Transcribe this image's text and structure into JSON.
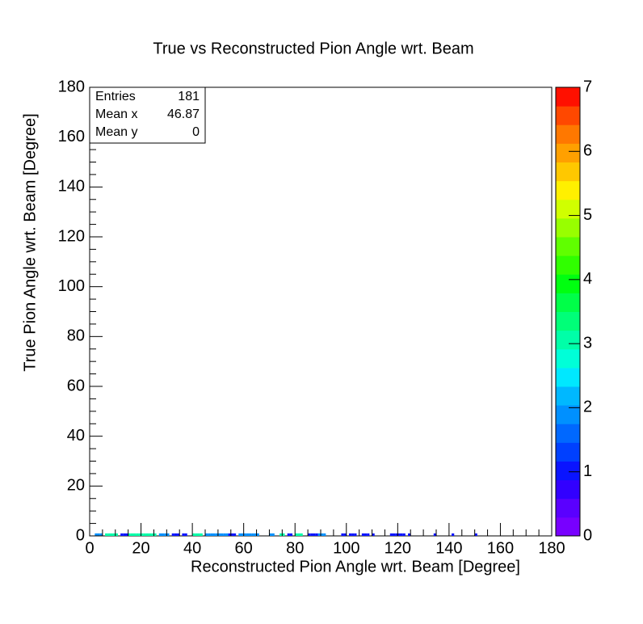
{
  "chart_data": {
    "type": "heatmap2d",
    "title": "True vs Reconstructed Pion Angle wrt. Beam",
    "x_label": "Reconstructed Pion Angle wrt. Beam [Degree]",
    "y_label": "True Pion Angle wrt. Beam [Degree]",
    "xlim": [
      0,
      180
    ],
    "ylim": [
      0,
      180
    ],
    "zlim": [
      0,
      7
    ],
    "xticks": [
      0,
      20,
      40,
      60,
      80,
      100,
      120,
      140,
      160,
      180
    ],
    "yticks": [
      0,
      20,
      40,
      60,
      80,
      100,
      120,
      140,
      160,
      180
    ],
    "zticks": [
      0,
      1,
      2,
      3,
      4,
      5,
      6,
      7
    ],
    "minor_divisions": 4,
    "xbin": 1,
    "ybin": 1,
    "x": [
      2,
      3,
      4,
      6,
      7,
      8,
      9,
      10,
      12,
      13,
      14,
      15,
      16,
      17,
      18,
      19,
      20,
      21,
      22,
      23,
      24,
      25,
      27,
      28,
      29,
      30,
      32,
      33,
      34,
      36,
      37,
      40,
      41,
      42,
      43,
      45,
      46,
      47,
      48,
      49,
      50,
      51,
      52,
      53,
      54,
      55,
      56,
      58,
      59,
      60,
      61,
      62,
      63,
      64,
      65,
      70,
      71,
      74,
      75,
      77,
      78,
      80,
      81,
      82,
      85,
      86,
      87,
      88,
      89,
      90,
      91,
      98,
      99,
      101,
      102,
      103,
      106,
      107,
      108,
      110,
      117,
      118,
      119,
      120,
      121,
      122,
      124,
      134,
      141,
      150
    ],
    "y": [
      0,
      0,
      0,
      0,
      0,
      0,
      0,
      0,
      0,
      0,
      0,
      0,
      0,
      0,
      0,
      0,
      0,
      0,
      0,
      0,
      0,
      0,
      0,
      0,
      0,
      0,
      0,
      0,
      0,
      0,
      0,
      0,
      0,
      0,
      0,
      0,
      0,
      0,
      0,
      0,
      0,
      0,
      0,
      0,
      0,
      0,
      0,
      0,
      0,
      0,
      0,
      0,
      0,
      0,
      0,
      0,
      0,
      0,
      0,
      0,
      0,
      0,
      0,
      0,
      0,
      0,
      0,
      0,
      0,
      0,
      0,
      0,
      0,
      0,
      0,
      0,
      0,
      0,
      0,
      0,
      0,
      0,
      0,
      0,
      0,
      0,
      0,
      0,
      0,
      0
    ],
    "values": [
      2,
      2,
      2,
      3,
      3,
      3,
      3,
      3,
      1,
      1,
      1,
      3,
      3,
      3,
      3,
      3,
      3,
      3,
      3,
      3,
      3,
      3,
      2,
      2,
      2,
      2,
      1,
      1,
      1,
      1,
      1,
      3,
      3,
      3,
      3,
      2,
      2,
      2,
      2,
      2,
      2,
      2,
      2,
      2,
      1,
      1,
      1,
      2,
      2,
      2,
      2,
      2,
      2,
      2,
      2,
      2,
      2,
      3,
      3,
      1,
      1,
      3,
      3,
      3,
      1,
      1,
      1,
      1,
      2,
      2,
      2,
      1,
      1,
      1,
      1,
      1,
      1,
      1,
      1,
      1,
      1,
      1,
      1,
      1,
      1,
      1,
      1,
      1,
      1,
      1
    ],
    "palette": [
      "#7800ff",
      "#5a00ff",
      "#3200ff",
      "#0a14ff",
      "#0040ff",
      "#0068ff",
      "#0090ff",
      "#00b8ff",
      "#00e8ff",
      "#00ffd8",
      "#00ffa8",
      "#00ff78",
      "#00ff48",
      "#00ff10",
      "#30ff00",
      "#60ff00",
      "#98ff00",
      "#d0ff00",
      "#fff000",
      "#ffc800",
      "#ffa000",
      "#ff7800",
      "#ff4800",
      "#ff1000"
    ],
    "stats": [
      {
        "label": "Entries",
        "value": 181
      },
      {
        "label": "Mean x",
        "value": 46.87
      },
      {
        "label": "Mean y",
        "value": 0
      }
    ]
  }
}
